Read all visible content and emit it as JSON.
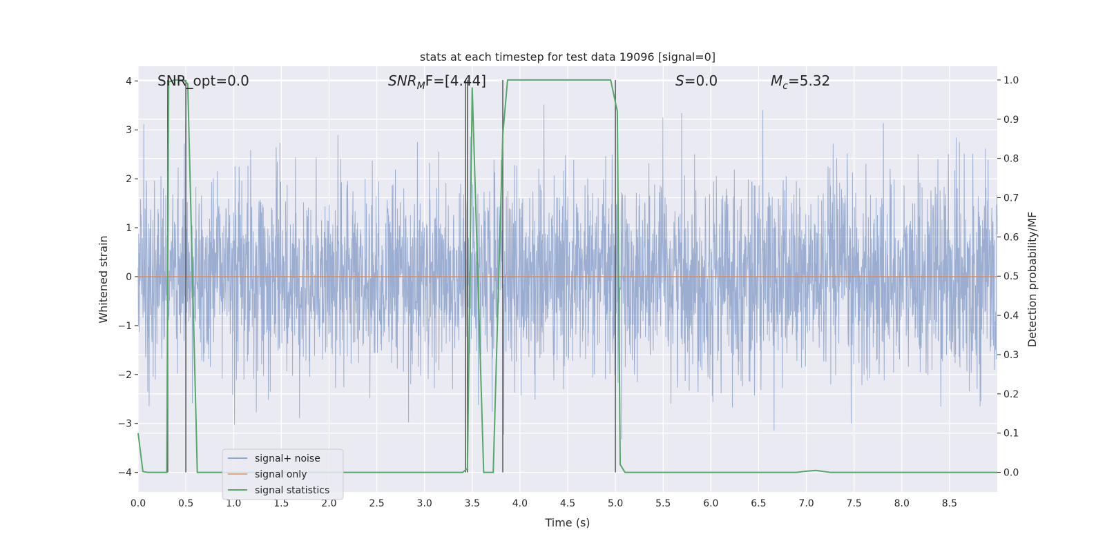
{
  "chart_data": {
    "type": "line",
    "title": "stats at each timestep for test data 19096 [signal=0]",
    "xlabel": "Time (s)",
    "ylabel": "Whitened strain",
    "y2label": "Detection probability/MF",
    "xlim": [
      0.0,
      9.0
    ],
    "ylim": [
      -4.4,
      4.3
    ],
    "y2lim": [
      -0.05,
      1.035
    ],
    "xticks": [
      "0.0",
      "0.5",
      "1.0",
      "1.5",
      "2.0",
      "2.5",
      "3.0",
      "3.5",
      "4.0",
      "4.5",
      "5.0",
      "5.5",
      "6.0",
      "6.5",
      "7.0",
      "7.5",
      "8.0",
      "8.5"
    ],
    "yticks": [
      "−4",
      "−3",
      "−2",
      "−1",
      "0",
      "1",
      "2",
      "3",
      "4"
    ],
    "y2ticks": [
      "0.0",
      "0.1",
      "0.2",
      "0.3",
      "0.4",
      "0.5",
      "0.6",
      "0.7",
      "0.8",
      "0.9",
      "1.0"
    ],
    "grid": true,
    "legend_position": "lower-left",
    "annotations": {
      "snr_opt": "SNR_opt=0.0",
      "snr_mf_base": "SNR",
      "snr_mf_sub": "M",
      "snr_mf_rest": "F=[4.44]",
      "s_base": "S",
      "s_rest": "=0.0",
      "mc_base": "M",
      "mc_sub": "c",
      "mc_rest": "=5.32"
    },
    "series": [
      {
        "name": "signal+ noise",
        "color": "#4c72b0",
        "description_values": "noise envelope between roughly -4.0 and 4.0, typical band ±1.6"
      },
      {
        "name": "signal only",
        "color": "#dd8452",
        "values_constant": 0.0
      },
      {
        "name": "signal statistics",
        "color": "#55a868",
        "x": [
          0.0,
          0.05,
          0.1,
          0.3,
          0.32,
          0.38,
          0.48,
          0.52,
          0.62,
          0.75,
          3.3,
          3.4,
          3.45,
          3.5,
          3.62,
          3.72,
          3.82,
          3.87,
          4.0,
          4.95,
          5.02,
          5.05,
          5.1,
          6.9,
          7.0,
          7.1,
          7.25,
          9.0
        ],
        "values": [
          0.1,
          0.002,
          0.0,
          0.0,
          0.995,
          1.0,
          1.0,
          0.99,
          0.0,
          0.0,
          0.0,
          0.0,
          0.01,
          0.98,
          0.0,
          0.0,
          0.86,
          1.0,
          1.0,
          1.0,
          0.92,
          0.02,
          0.0,
          0.0,
          0.003,
          0.005,
          0.0,
          0.0
        ]
      }
    ],
    "vertical_lines_x": [
      0.31,
      0.5,
      3.43,
      3.45,
      3.82,
      5.0
    ]
  },
  "legend": {
    "items": [
      {
        "label": "signal+ noise",
        "color": "#8fa6cf"
      },
      {
        "label": "signal only",
        "color": "#e3a886"
      },
      {
        "label": "signal statistics",
        "color": "#55a868"
      }
    ]
  }
}
